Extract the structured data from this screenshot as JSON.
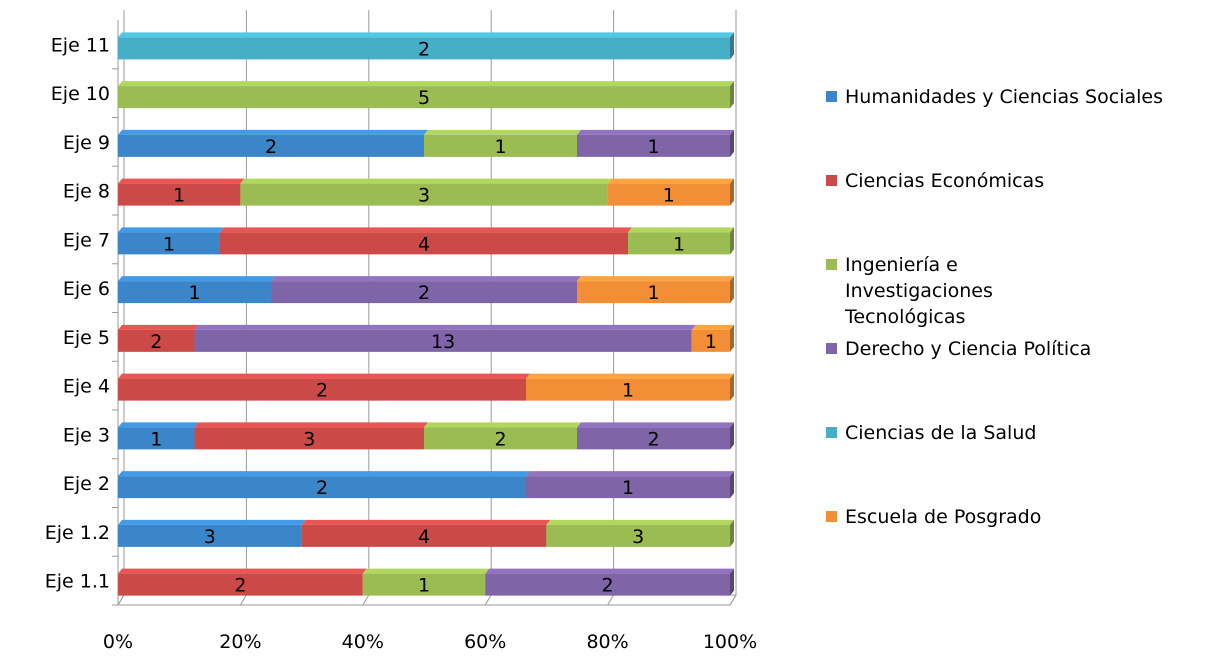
{
  "chart_data": {
    "type": "bar",
    "orientation": "horizontal",
    "stacked": "percent",
    "categories": [
      "Eje 1.1",
      "Eje 1.2",
      "Eje 2",
      "Eje 3",
      "Eje 4",
      "Eje 5",
      "Eje 6",
      "Eje 7",
      "Eje 8",
      "Eje 9",
      "Eje 10",
      "Eje 11"
    ],
    "series": [
      {
        "name": "Humanidades y Ciencias Sociales",
        "color": "#3a86c8",
        "values": [
          0,
          3,
          2,
          1,
          0,
          0,
          1,
          1,
          0,
          2,
          0,
          0
        ]
      },
      {
        "name": "Ciencias Económicas",
        "color": "#cb4a48",
        "values": [
          2,
          4,
          0,
          3,
          2,
          2,
          0,
          4,
          1,
          0,
          0,
          0
        ]
      },
      {
        "name": "Ingeniería e Investigaciones Tecnológicas",
        "color": "#9bbb53",
        "values": [
          1,
          3,
          0,
          2,
          0,
          0,
          0,
          1,
          3,
          1,
          5,
          0
        ]
      },
      {
        "name": "Derecho y Ciencia Política",
        "color": "#7f64a8",
        "values": [
          2,
          0,
          1,
          2,
          0,
          13,
          2,
          0,
          0,
          1,
          0,
          0
        ]
      },
      {
        "name": "Ciencias de la Salud",
        "color": "#47aec8",
        "values": [
          0,
          0,
          0,
          0,
          0,
          0,
          0,
          0,
          0,
          0,
          0,
          2
        ]
      },
      {
        "name": "Escuela de Posgrado",
        "color": "#f28f36",
        "values": [
          0,
          0,
          0,
          0,
          1,
          1,
          1,
          0,
          1,
          0,
          0,
          0
        ]
      }
    ],
    "x_ticks": [
      "0%",
      "20%",
      "40%",
      "60%",
      "80%",
      "100%"
    ],
    "xlim": [
      0,
      100
    ],
    "grid": true,
    "legend_position": "right",
    "title": "",
    "xlabel": "",
    "ylabel": ""
  }
}
